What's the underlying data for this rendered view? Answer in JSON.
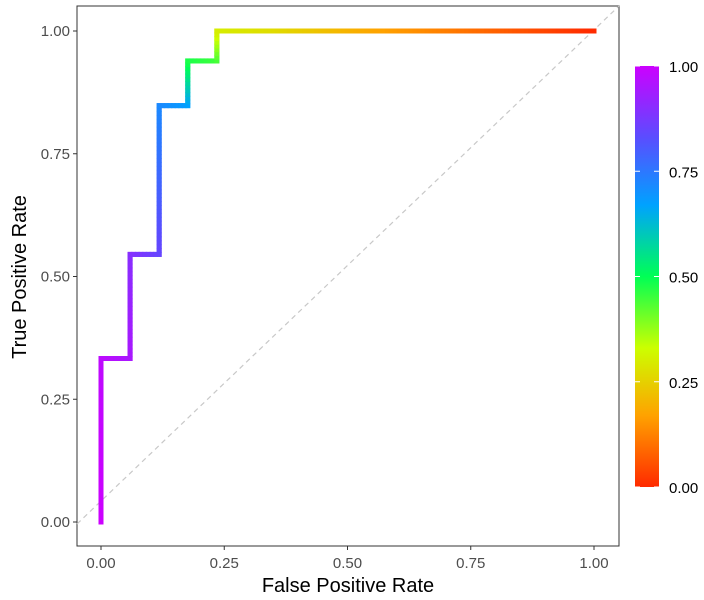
{
  "chart_data": {
    "type": "line",
    "title": "",
    "xlabel": "False Positive Rate",
    "ylabel": "True Positive Rate",
    "xlim": [
      0,
      1
    ],
    "ylim": [
      0,
      1
    ],
    "x_ticks": [
      "0.00",
      "0.25",
      "0.50",
      "0.75",
      "1.00"
    ],
    "y_ticks": [
      "0.00",
      "0.25",
      "0.50",
      "0.75",
      "1.00"
    ],
    "grid": false,
    "diagonal_reference": true,
    "series": [
      {
        "color_by": "threshold",
        "points": [
          {
            "x": 0.0,
            "y": 0.0,
            "threshold": 1.0
          },
          {
            "x": 0.0,
            "y": 0.333,
            "threshold": 0.98
          },
          {
            "x": 0.059,
            "y": 0.333,
            "threshold": 0.95
          },
          {
            "x": 0.059,
            "y": 0.545,
            "threshold": 0.9
          },
          {
            "x": 0.118,
            "y": 0.545,
            "threshold": 0.85
          },
          {
            "x": 0.118,
            "y": 0.848,
            "threshold": 0.72
          },
          {
            "x": 0.176,
            "y": 0.848,
            "threshold": 0.68
          },
          {
            "x": 0.176,
            "y": 0.939,
            "threshold": 0.48
          },
          {
            "x": 0.235,
            "y": 0.939,
            "threshold": 0.45
          },
          {
            "x": 0.235,
            "y": 1.0,
            "threshold": 0.3
          },
          {
            "x": 0.35,
            "y": 1.0,
            "threshold": 0.27
          },
          {
            "x": 0.5,
            "y": 1.0,
            "threshold": 0.2
          },
          {
            "x": 0.75,
            "y": 1.0,
            "threshold": 0.1
          },
          {
            "x": 1.0,
            "y": 1.0,
            "threshold": 0.0
          }
        ]
      }
    ],
    "legend": {
      "placement": "right",
      "ticks": [
        "0.00",
        "0.25",
        "0.50",
        "0.75",
        "1.00"
      ],
      "gradient_stops": [
        {
          "value": 0.0,
          "color": "#ff2a00"
        },
        {
          "value": 0.17,
          "color": "#ffa200"
        },
        {
          "value": 0.33,
          "color": "#ccff00"
        },
        {
          "value": 0.5,
          "color": "#00ff55"
        },
        {
          "value": 0.67,
          "color": "#00a2ff"
        },
        {
          "value": 0.83,
          "color": "#5a4dff"
        },
        {
          "value": 1.0,
          "color": "#cc00ff"
        }
      ]
    }
  }
}
